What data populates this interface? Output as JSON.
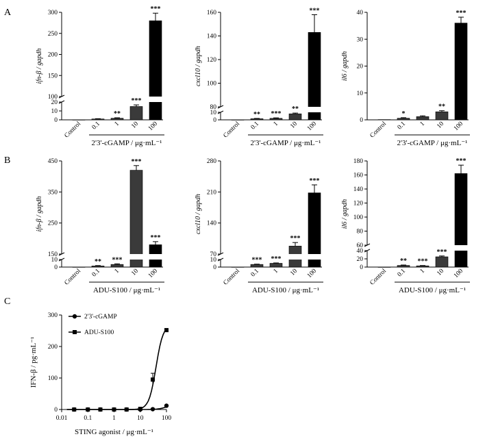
{
  "panel_labels": [
    "A",
    "B",
    "C"
  ],
  "chart_data": [
    {
      "type": "bar",
      "panel": "A",
      "ylabel_gene": "ifn-β",
      "ylabel_ref": "gapdh",
      "xlabel": "2'3'-cGAMP / μg·mL⁻¹",
      "categories": [
        "Control",
        "0.1",
        "1",
        "10",
        "100"
      ],
      "values": [
        0.1,
        1.0,
        1.8,
        15,
        280
      ],
      "errors": [
        0,
        0.3,
        0.5,
        1.8,
        18
      ],
      "stars": [
        "",
        "",
        "**",
        "***",
        "***"
      ],
      "colors": [
        "#ffffff",
        "#3a3a3a",
        "#3a3a3a",
        "#3a3a3a",
        "#000000"
      ],
      "break": {
        "lower": [
          0,
          20
        ],
        "upper": [
          100,
          300
        ],
        "lower_ticks": [
          0,
          10,
          20
        ],
        "upper_ticks": [
          100,
          150,
          200,
          250,
          300
        ]
      }
    },
    {
      "type": "bar",
      "panel": "A",
      "ylabel_gene": "cxcl10",
      "ylabel_ref": "gapdh",
      "xlabel": "2'3'-cGAMP / μg·mL⁻¹",
      "categories": [
        "Control",
        "0.1",
        "1",
        "10",
        "100"
      ],
      "values": [
        0.1,
        1.5,
        2.0,
        8,
        143
      ],
      "errors": [
        0,
        0.4,
        0.6,
        1.0,
        15
      ],
      "stars": [
        "",
        "**",
        "***",
        "**",
        "***"
      ],
      "colors": [
        "#ffffff",
        "#3a3a3a",
        "#3a3a3a",
        "#3a3a3a",
        "#000000"
      ],
      "break": {
        "lower": [
          0,
          10
        ],
        "upper": [
          80,
          160
        ],
        "lower_ticks": [
          0,
          10
        ],
        "upper_ticks": [
          80,
          100,
          120,
          140,
          160
        ]
      }
    },
    {
      "type": "bar",
      "panel": "A",
      "ylabel_gene": "il6",
      "ylabel_ref": "gapdh",
      "xlabel": "2'3'-cGAMP / μg·mL⁻¹",
      "categories": [
        "Control",
        "0.1",
        "1",
        "10",
        "100"
      ],
      "values": [
        0.1,
        0.6,
        1.2,
        3.0,
        36
      ],
      "errors": [
        0,
        0.2,
        0.3,
        0.4,
        2.2
      ],
      "stars": [
        "",
        "*",
        "",
        "**",
        "***"
      ],
      "colors": [
        "#ffffff",
        "#3a3a3a",
        "#3a3a3a",
        "#3a3a3a",
        "#000000"
      ],
      "ylim": [
        0,
        40
      ],
      "ticks": [
        0,
        10,
        20,
        30,
        40
      ]
    },
    {
      "type": "bar",
      "panel": "B",
      "ylabel_gene": "ifn-β",
      "ylabel_ref": "gapdh",
      "xlabel": "ADU-S100 / μg·mL⁻¹",
      "categories": [
        "Control",
        "0.1",
        "1",
        "10",
        "100"
      ],
      "values": [
        0.1,
        1.5,
        3.5,
        420,
        180
      ],
      "errors": [
        0,
        0.5,
        0.8,
        15,
        10
      ],
      "stars": [
        "",
        "**",
        "***",
        "***",
        "***"
      ],
      "colors": [
        "#ffffff",
        "#3a3a3a",
        "#3a3a3a",
        "#3a3a3a",
        "#000000"
      ],
      "break": {
        "lower": [
          0,
          10
        ],
        "upper": [
          150,
          450
        ],
        "lower_ticks": [
          0,
          10
        ],
        "upper_ticks": [
          150,
          250,
          350,
          450
        ]
      }
    },
    {
      "type": "bar",
      "panel": "B",
      "ylabel_gene": "cxcl10",
      "ylabel_ref": "gapdh",
      "xlabel": "ADU-S100 / μg·mL⁻¹",
      "categories": [
        "Control",
        "0.1",
        "1",
        "10",
        "100"
      ],
      "values": [
        0.1,
        3.5,
        5.0,
        88,
        208
      ],
      "errors": [
        0,
        0.4,
        0.5,
        8,
        18
      ],
      "stars": [
        "",
        "***",
        "***",
        "***",
        "***"
      ],
      "colors": [
        "#ffffff",
        "#3a3a3a",
        "#3a3a3a",
        "#3a3a3a",
        "#000000"
      ],
      "break": {
        "lower": [
          0,
          10
        ],
        "upper": [
          70,
          280
        ],
        "lower_ticks": [
          0,
          10
        ],
        "upper_ticks": [
          70,
          140,
          210,
          280
        ]
      }
    },
    {
      "type": "bar",
      "panel": "B",
      "ylabel_gene": "il6",
      "ylabel_ref": "gapdh",
      "xlabel": "ADU-S100 / μg·mL⁻¹",
      "categories": [
        "Control",
        "0.1",
        "1",
        "10",
        "100"
      ],
      "values": [
        0.1,
        4,
        3,
        25,
        162
      ],
      "errors": [
        0,
        1,
        0.8,
        2,
        12
      ],
      "stars": [
        "",
        "**",
        "***",
        "***",
        "***"
      ],
      "colors": [
        "#ffffff",
        "#3a3a3a",
        "#3a3a3a",
        "#3a3a3a",
        "#000000"
      ],
      "break": {
        "lower": [
          0,
          40
        ],
        "upper": [
          60,
          180
        ],
        "lower_ticks": [
          0,
          20,
          40
        ],
        "upper_ticks": [
          60,
          80,
          100,
          120,
          140,
          160,
          180
        ]
      }
    },
    {
      "type": "line",
      "panel": "C",
      "xscale": "log",
      "xlabel": "STING agonist / μg·mL⁻¹",
      "ylabel": "IFN-β / pg·mL⁻¹",
      "xlim": [
        0.01,
        100
      ],
      "ylim": [
        0,
        300
      ],
      "xticks": [
        "0.01",
        "0.1",
        "1",
        "10",
        "100"
      ],
      "yticks": [
        0,
        100,
        200,
        300
      ],
      "series": [
        {
          "name": "2'3'-cGAMP",
          "marker": "circle",
          "x": [
            0.03,
            0.1,
            0.3,
            1,
            3,
            10,
            30,
            100
          ],
          "y": [
            0,
            0,
            0,
            0,
            0,
            0,
            1,
            12
          ],
          "err": [
            0,
            0,
            0,
            0,
            0,
            0,
            1,
            2
          ]
        },
        {
          "name": "ADU-S100",
          "marker": "square",
          "x": [
            0.03,
            0.1,
            0.3,
            1,
            3,
            10,
            30,
            100
          ],
          "y": [
            0,
            0,
            0,
            0,
            0,
            2,
            95,
            252
          ],
          "err": [
            0,
            0,
            0,
            0,
            0,
            1,
            20,
            4
          ]
        }
      ],
      "legend": "top-left"
    }
  ]
}
